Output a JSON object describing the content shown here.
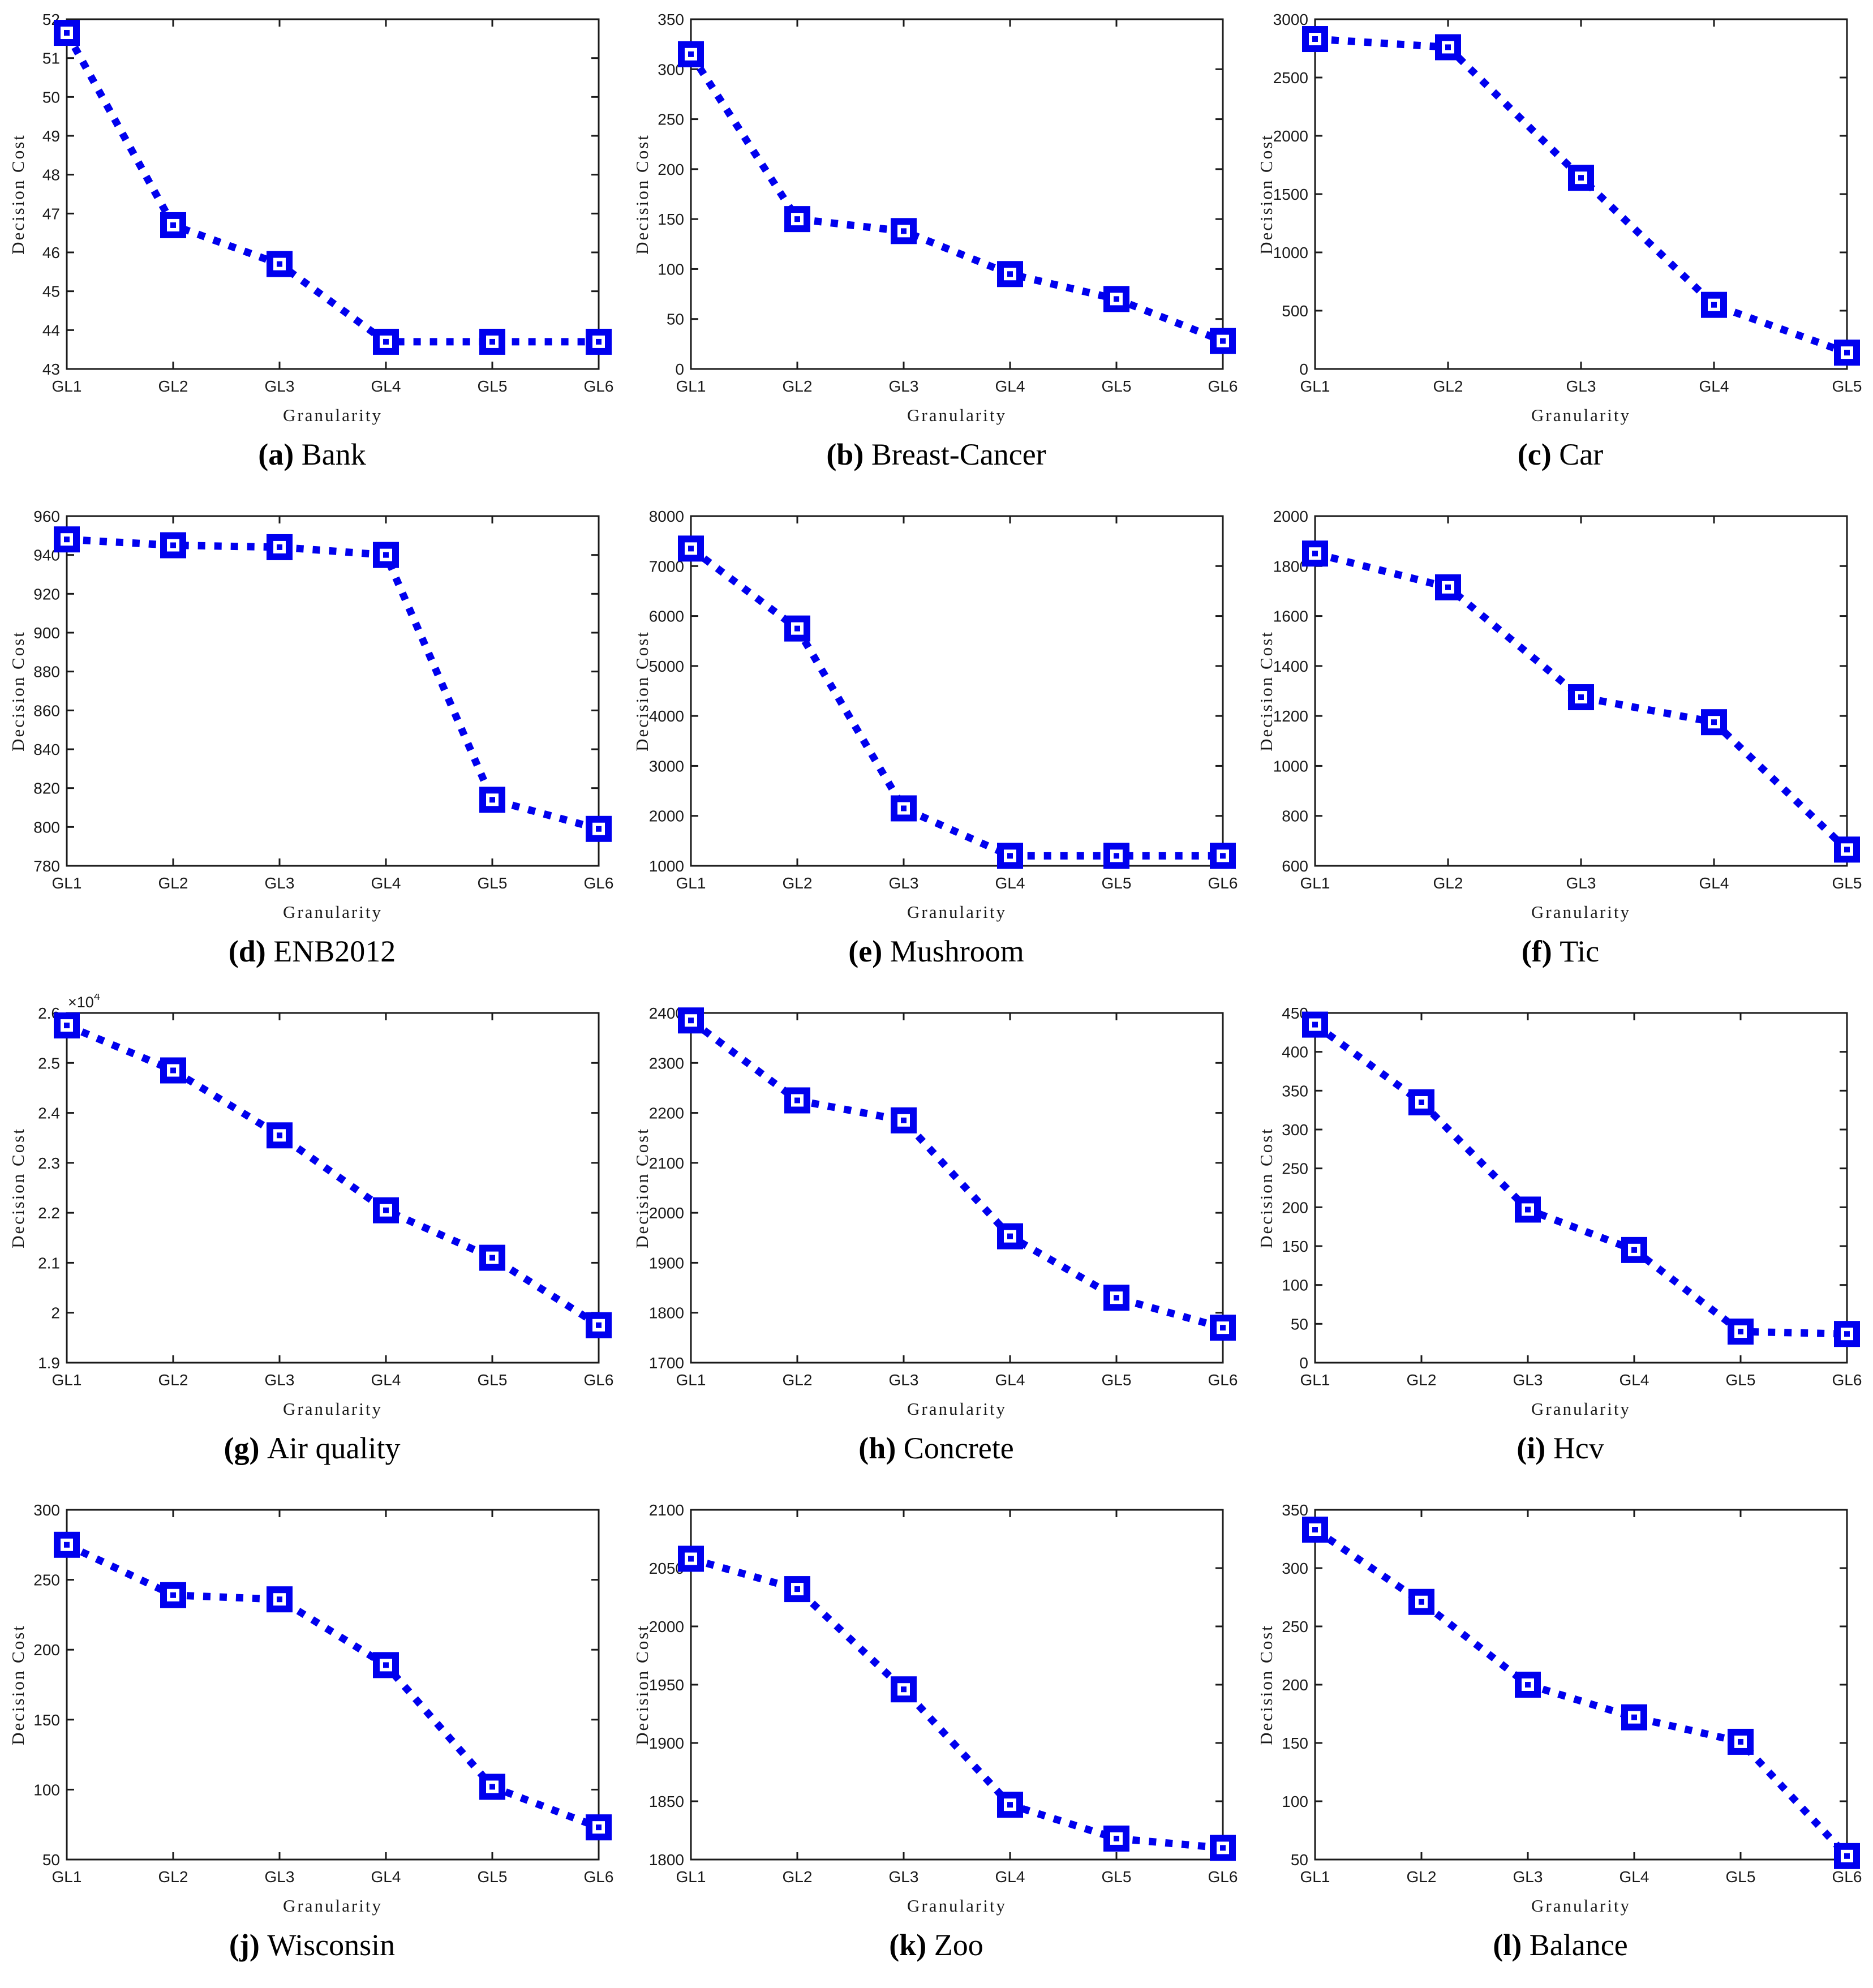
{
  "figure": {
    "xlabel": "Granularity",
    "ylabel": "Decision Cost",
    "series_color": "#0000EE",
    "frame_color": "#1a1a1a",
    "marker": "square"
  },
  "chart_data": [
    {
      "type": "line",
      "caption_letter": "a",
      "caption_name": "Bank",
      "categories": [
        "GL1",
        "GL2",
        "GL3",
        "GL4",
        "GL5",
        "GL6"
      ],
      "values": [
        51.65,
        46.7,
        45.7,
        43.7,
        43.7,
        43.7
      ],
      "ylim": [
        43,
        52
      ],
      "yticks": [
        43,
        44,
        45,
        46,
        47,
        48,
        49,
        50,
        51,
        52
      ],
      "ytick_labels": [
        "43",
        "44",
        "45",
        "46",
        "47",
        "48",
        "49",
        "50",
        "51",
        "52"
      ],
      "y_multiplier": ""
    },
    {
      "type": "line",
      "caption_letter": "b",
      "caption_name": "Breast-Cancer",
      "categories": [
        "GL1",
        "GL2",
        "GL3",
        "GL4",
        "GL5",
        "GL6"
      ],
      "values": [
        315,
        150,
        138,
        95,
        70,
        28
      ],
      "ylim": [
        0,
        350
      ],
      "yticks": [
        0,
        50,
        100,
        150,
        200,
        250,
        300,
        350
      ],
      "ytick_labels": [
        "0",
        "50",
        "100",
        "150",
        "200",
        "250",
        "300",
        "350"
      ],
      "y_multiplier": ""
    },
    {
      "type": "line",
      "caption_letter": "c",
      "caption_name": "Car",
      "categories": [
        "GL1",
        "GL2",
        "GL3",
        "GL4",
        "GL5"
      ],
      "values": [
        2830,
        2760,
        1640,
        550,
        140
      ],
      "ylim": [
        0,
        3000
      ],
      "yticks": [
        0,
        500,
        1000,
        1500,
        2000,
        2500,
        3000
      ],
      "ytick_labels": [
        "0",
        "500",
        "1000",
        "1500",
        "2000",
        "2500",
        "3000"
      ],
      "y_multiplier": ""
    },
    {
      "type": "line",
      "caption_letter": "d",
      "caption_name": "ENB2012",
      "categories": [
        "GL1",
        "GL2",
        "GL3",
        "GL4",
        "GL5",
        "GL6"
      ],
      "values": [
        948,
        945,
        944,
        940,
        814,
        799
      ],
      "ylim": [
        780,
        960
      ],
      "yticks": [
        780,
        800,
        820,
        840,
        860,
        880,
        900,
        920,
        940,
        960
      ],
      "ytick_labels": [
        "780",
        "800",
        "820",
        "840",
        "860",
        "880",
        "900",
        "920",
        "940",
        "960"
      ],
      "y_multiplier": ""
    },
    {
      "type": "line",
      "caption_letter": "e",
      "caption_name": "Mushroom",
      "categories": [
        "GL1",
        "GL2",
        "GL3",
        "GL4",
        "GL5",
        "GL6"
      ],
      "values": [
        7350,
        5750,
        2150,
        1200,
        1200,
        1200
      ],
      "ylim": [
        1000,
        8000
      ],
      "yticks": [
        1000,
        2000,
        3000,
        4000,
        5000,
        6000,
        7000,
        8000
      ],
      "ytick_labels": [
        "1000",
        "2000",
        "3000",
        "4000",
        "5000",
        "6000",
        "7000",
        "8000"
      ],
      "y_multiplier": ""
    },
    {
      "type": "line",
      "caption_letter": "f",
      "caption_name": "Tic",
      "categories": [
        "GL1",
        "GL2",
        "GL3",
        "GL4",
        "GL5"
      ],
      "values": [
        1850,
        1715,
        1275,
        1175,
        665
      ],
      "ylim": [
        600,
        2000
      ],
      "yticks": [
        600,
        800,
        1000,
        1200,
        1400,
        1600,
        1800,
        2000
      ],
      "ytick_labels": [
        "600",
        "800",
        "1000",
        "1200",
        "1400",
        "1600",
        "1800",
        "2000"
      ],
      "y_multiplier": ""
    },
    {
      "type": "line",
      "caption_letter": "g",
      "caption_name": "Air quality",
      "categories": [
        "GL1",
        "GL2",
        "GL3",
        "GL4",
        "GL5",
        "GL6"
      ],
      "values": [
        25750,
        24850,
        23550,
        22050,
        21100,
        19750
      ],
      "ylim": [
        19000,
        26000
      ],
      "yticks": [
        19000,
        20000,
        21000,
        22000,
        23000,
        24000,
        25000,
        26000
      ],
      "ytick_labels": [
        "1.9",
        "2",
        "2.1",
        "2.2",
        "2.3",
        "2.4",
        "2.5",
        "2.6"
      ],
      "y_multiplier": "×10"
    },
    {
      "type": "line",
      "caption_letter": "h",
      "caption_name": "Concrete",
      "categories": [
        "GL1",
        "GL2",
        "GL3",
        "GL4",
        "GL5",
        "GL6"
      ],
      "values": [
        2385,
        2225,
        2185,
        1953,
        1830,
        1770
      ],
      "ylim": [
        1700,
        2400
      ],
      "yticks": [
        1700,
        1800,
        1900,
        2000,
        2100,
        2200,
        2300,
        2400
      ],
      "ytick_labels": [
        "1700",
        "1800",
        "1900",
        "2000",
        "2100",
        "2200",
        "2300",
        "2400"
      ],
      "y_multiplier": ""
    },
    {
      "type": "line",
      "caption_letter": "i",
      "caption_name": "Hcv",
      "categories": [
        "GL1",
        "GL2",
        "GL3",
        "GL4",
        "GL5",
        "GL6"
      ],
      "values": [
        435,
        335,
        197,
        145,
        40,
        37
      ],
      "ylim": [
        0,
        450
      ],
      "yticks": [
        0,
        50,
        100,
        150,
        200,
        250,
        300,
        350,
        400,
        450
      ],
      "ytick_labels": [
        "0",
        "50",
        "100",
        "150",
        "200",
        "250",
        "300",
        "350",
        "400",
        "450"
      ],
      "y_multiplier": ""
    },
    {
      "type": "line",
      "caption_letter": "j",
      "caption_name": "Wisconsin",
      "categories": [
        "GL1",
        "GL2",
        "GL3",
        "GL4",
        "GL5",
        "GL6"
      ],
      "values": [
        275,
        239,
        236,
        189,
        102,
        73
      ],
      "ylim": [
        50,
        300
      ],
      "yticks": [
        50,
        100,
        150,
        200,
        250,
        300
      ],
      "ytick_labels": [
        "50",
        "100",
        "150",
        "200",
        "250",
        "300"
      ],
      "y_multiplier": ""
    },
    {
      "type": "line",
      "caption_letter": "k",
      "caption_name": "Zoo",
      "categories": [
        "GL1",
        "GL2",
        "GL3",
        "GL4",
        "GL5",
        "GL6"
      ],
      "values": [
        2058,
        2032,
        1946,
        1847,
        1818,
        1810
      ],
      "ylim": [
        1800,
        2100
      ],
      "yticks": [
        1800,
        1850,
        1900,
        1950,
        2000,
        2050,
        2100
      ],
      "ytick_labels": [
        "1800",
        "1850",
        "1900",
        "1950",
        "2000",
        "2050",
        "2100"
      ],
      "y_multiplier": ""
    },
    {
      "type": "line",
      "caption_letter": "l",
      "caption_name": "Balance",
      "categories": [
        "GL1",
        "GL2",
        "GL3",
        "GL4",
        "GL5",
        "GL6"
      ],
      "values": [
        333,
        271,
        200,
        172,
        151,
        53
      ],
      "ylim": [
        50,
        350
      ],
      "yticks": [
        50,
        100,
        150,
        200,
        250,
        300,
        350
      ],
      "ytick_labels": [
        "50",
        "100",
        "150",
        "200",
        "250",
        "300",
        "350"
      ],
      "y_multiplier": ""
    }
  ]
}
